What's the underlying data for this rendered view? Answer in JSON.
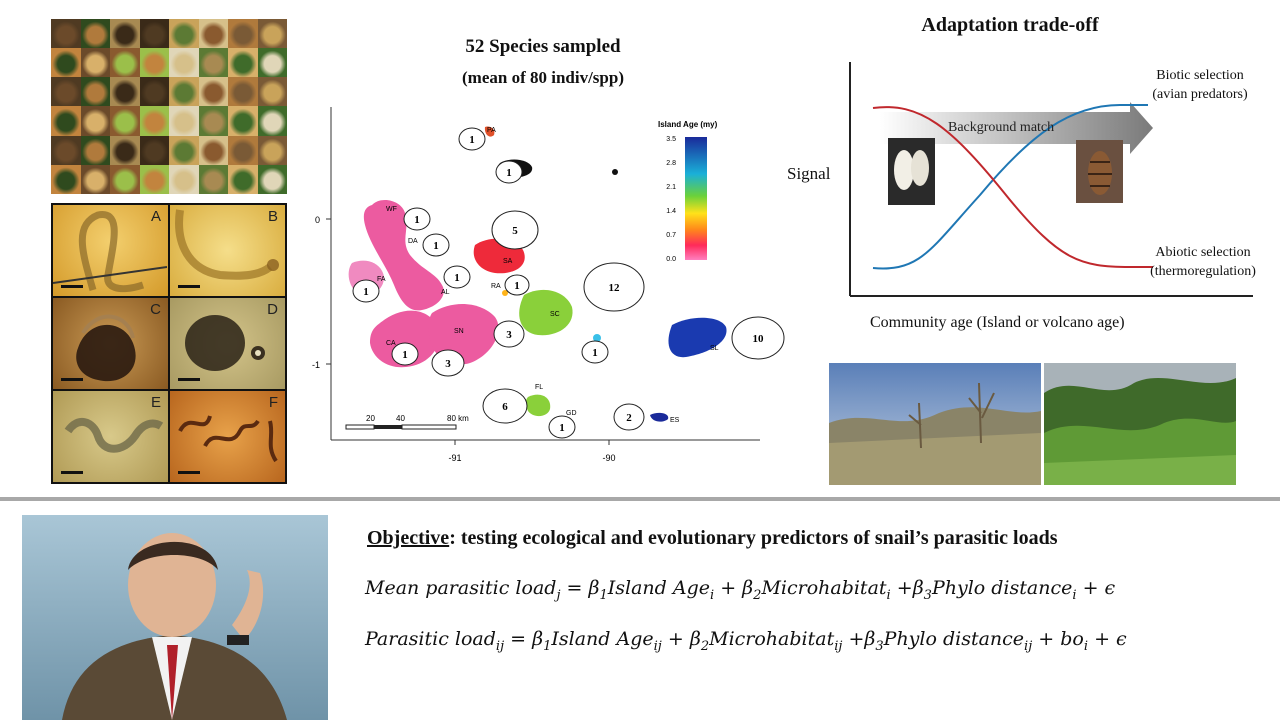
{
  "colors": {
    "biotic_curve": "#1f77b4",
    "abiotic_curve": "#c0282d",
    "divider": "#a8a8a8",
    "island_age_low": "#ff3f8f",
    "island_age_high": "#1a2a9a"
  },
  "panels": {
    "parasite_labels": [
      "A",
      "B",
      "C",
      "D",
      "E",
      "F"
    ]
  },
  "map": {
    "title": "52 Species sampled",
    "subtitle": "(mean of  80 indiv/spp)",
    "legend_title": "Island Age (my)",
    "legend_ticks": [
      "3.5",
      "2.8",
      "2.1",
      "1.4",
      "0.7",
      "0.0"
    ],
    "y_ticks": [
      "0",
      "-1"
    ],
    "x_ticks": [
      "-91",
      "-90"
    ],
    "scale_labels": [
      "20",
      "40",
      "80 km"
    ],
    "islands": [
      {
        "code": "PA",
        "count": "1"
      },
      {
        "code": "",
        "count": "1"
      },
      {
        "code": "WF",
        "count": "1"
      },
      {
        "code": "DA",
        "count": "1"
      },
      {
        "code": "FA",
        "count": "1"
      },
      {
        "code": "AL",
        "count": "1"
      },
      {
        "code": "SA",
        "count": "5"
      },
      {
        "code": "RA",
        "count": "1"
      },
      {
        "code": "SC",
        "count": "12"
      },
      {
        "code": "",
        "count": "3"
      },
      {
        "code": "SN",
        "count": "3"
      },
      {
        "code": "CA",
        "count": "1"
      },
      {
        "code": "",
        "count": "1"
      },
      {
        "code": "SL",
        "count": "10"
      },
      {
        "code": "FL",
        "count": "6"
      },
      {
        "code": "GD",
        "count": "1"
      },
      {
        "code": "ES",
        "count": "2"
      }
    ]
  },
  "tradeoff": {
    "title": "Adaptation trade-off",
    "y_label": "Signal",
    "x_label": "Community age (Island or volcano age)",
    "arrow_label": "Background match",
    "biotic": [
      "Biotic selection",
      "(avian predators)"
    ],
    "abiotic": [
      "Abiotic selection",
      "(thermoregulation)"
    ]
  },
  "objective": {
    "lead": "Objective",
    "text": ": testing ecological and evolutionary predictors of  snail’s parasitic loads"
  },
  "equations": {
    "eq1": {
      "lhs": "Mean parasitic load",
      "lhs_sub": "j",
      "t1": "Island Age",
      "t1_sub": "i",
      "t2": "Microhabitat",
      "t2_sub": "i",
      "t3": "Phylo distance",
      "t3_sub": "i"
    },
    "eq2": {
      "lhs": "Parasitic load",
      "lhs_sub": "ij",
      "t1": "Island Age",
      "t1_sub": "ij",
      "t2": "Microhabitat",
      "t2_sub": "ij",
      "t3": "Phylo distance",
      "t3_sub": "ij",
      "extra": "bo",
      "extra_sub": "i"
    }
  }
}
